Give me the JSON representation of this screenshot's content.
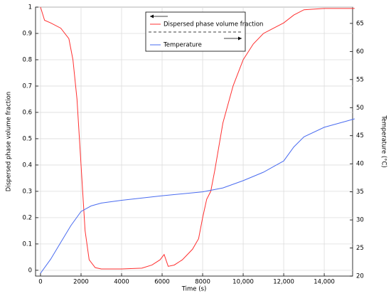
{
  "chart_data": {
    "type": "line",
    "x_label": "Time (s)",
    "y_label": "Dispersed phase volume fraction",
    "y2_label": "Temperature (°C)",
    "xlim": [
      -245,
      15400
    ],
    "xticks": [
      0,
      2000,
      4000,
      6000,
      8000,
      {
        "value": 10000,
        "label": "10,000"
      },
      {
        "value": 12000,
        "label": "12,000"
      },
      {
        "value": 14000,
        "label": "14,000"
      }
    ],
    "ylim": [
      -0.022,
      1
    ],
    "yticks": [
      0,
      0.1,
      0.2,
      0.3,
      0.4,
      0.5,
      0.6,
      0.7,
      0.8,
      0.9,
      1
    ],
    "y2lim": [
      20,
      67.9
    ],
    "y2ticks": [
      20,
      25,
      30,
      35,
      40,
      45,
      50,
      55,
      60,
      65
    ],
    "grid": true,
    "series": [
      {
        "name": "Dispersed phase volume fraction",
        "color": "#ff3030",
        "x": [
          0,
          200,
          500,
          1000,
          1400,
          1600,
          1800,
          2000,
          2200,
          2400,
          2700,
          3000,
          4000,
          5000,
          5500,
          5900,
          6100,
          6300,
          6600,
          7000,
          7500,
          7800,
          8000,
          8200,
          8400,
          8600,
          8800,
          9000,
          9500,
          10000,
          10500,
          11000,
          12000,
          12500,
          13000,
          14000,
          15500
        ],
        "values": [
          1,
          0.95,
          0.94,
          0.92,
          0.88,
          0.8,
          0.65,
          0.4,
          0.15,
          0.04,
          0.01,
          0.005,
          0.005,
          0.008,
          0.02,
          0.04,
          0.06,
          0.015,
          0.02,
          0.04,
          0.08,
          0.12,
          0.2,
          0.27,
          0.3,
          0.38,
          0.47,
          0.56,
          0.7,
          0.8,
          0.86,
          0.9,
          0.94,
          0.97,
          0.99,
          0.995,
          0.995
        ]
      },
      {
        "name": "Temperature",
        "color": "#4a6cf0",
        "axis": "y2",
        "x": [
          0,
          500,
          1000,
          1500,
          2000,
          2500,
          3000,
          4000,
          6000,
          8000,
          9000,
          10000,
          11000,
          12000,
          12500,
          13000,
          14000,
          15000,
          15500
        ],
        "values": [
          20.5,
          23,
          26,
          29,
          31.5,
          32.5,
          33,
          33.5,
          34.3,
          35,
          35.7,
          37,
          38.5,
          40.5,
          43,
          44.8,
          46.5,
          47.5,
          48
        ]
      }
    ]
  }
}
